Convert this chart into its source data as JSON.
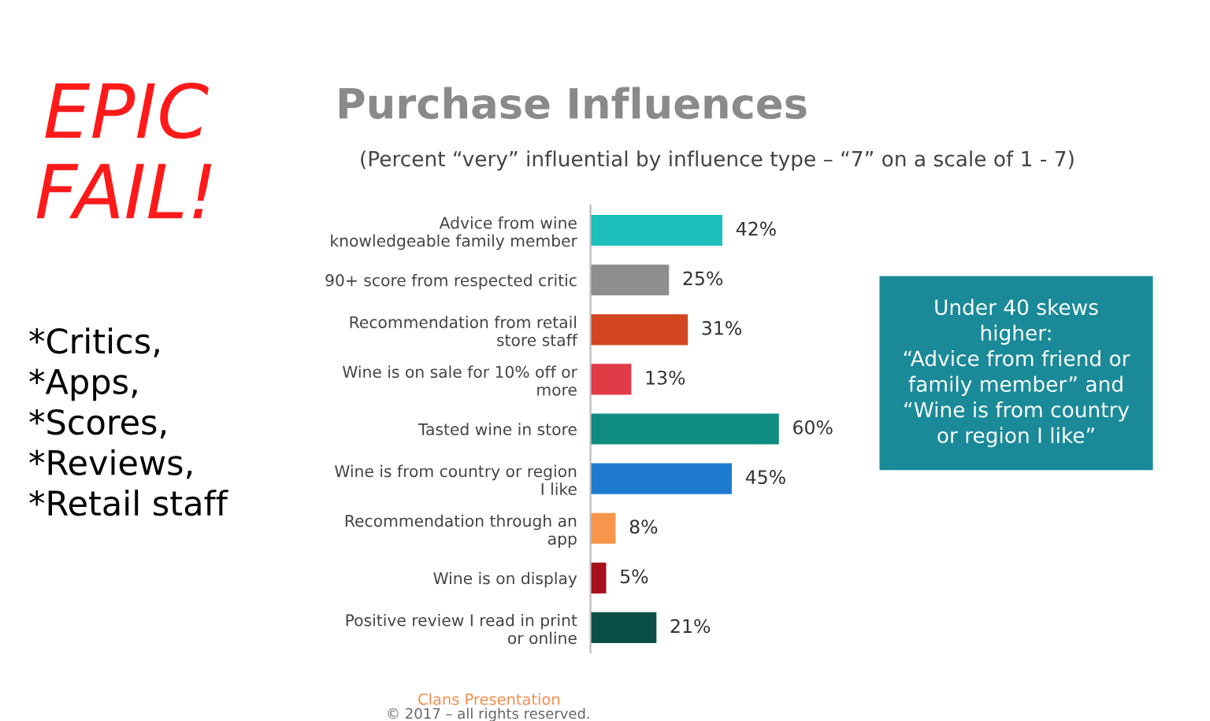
{
  "chart_data": {
    "type": "bar",
    "orientation": "horizontal",
    "title": "Purchase Influences",
    "subtitle": "(Percent “very” influential by influence type – “7” on a scale of 1 - 7)",
    "categories": [
      "Advice from wine\nknowledgeable family member",
      "90+ score from respected critic",
      "Recommendation from retail\nstore staff",
      "Wine is on sale for 10% off or\nmore",
      "Tasted wine in store",
      "Wine is from country or region\nI like",
      "Recommendation through an\napp",
      "Wine is on display",
      "Positive review I read in print\nor online"
    ],
    "values": [
      42,
      25,
      31,
      13,
      60,
      45,
      8,
      5,
      21
    ],
    "value_labels": [
      "42%",
      "25%",
      "31%",
      "13%",
      "60%",
      "45%",
      "8%",
      "5%",
      "21%"
    ],
    "colors": [
      "#1cbfbc",
      "#8e8e8e",
      "#d2461f",
      "#e23b48",
      "#0f8c80",
      "#1f7bd0",
      "#f7964a",
      "#a5101c",
      "#0c4f47"
    ],
    "annotations": [
      "EPIC\nFAIL!",
      "*Critics,\n*Apps,\n*Scores,\n*Reviews,\n*Retail staff",
      "Under 40 skews\nhigher:\n“Advice from friend or\nfamily member” and\n“Wine is from country\nor region I like”",
      "Clans Presentation",
      "© 2017 – all rights reserved."
    ]
  }
}
